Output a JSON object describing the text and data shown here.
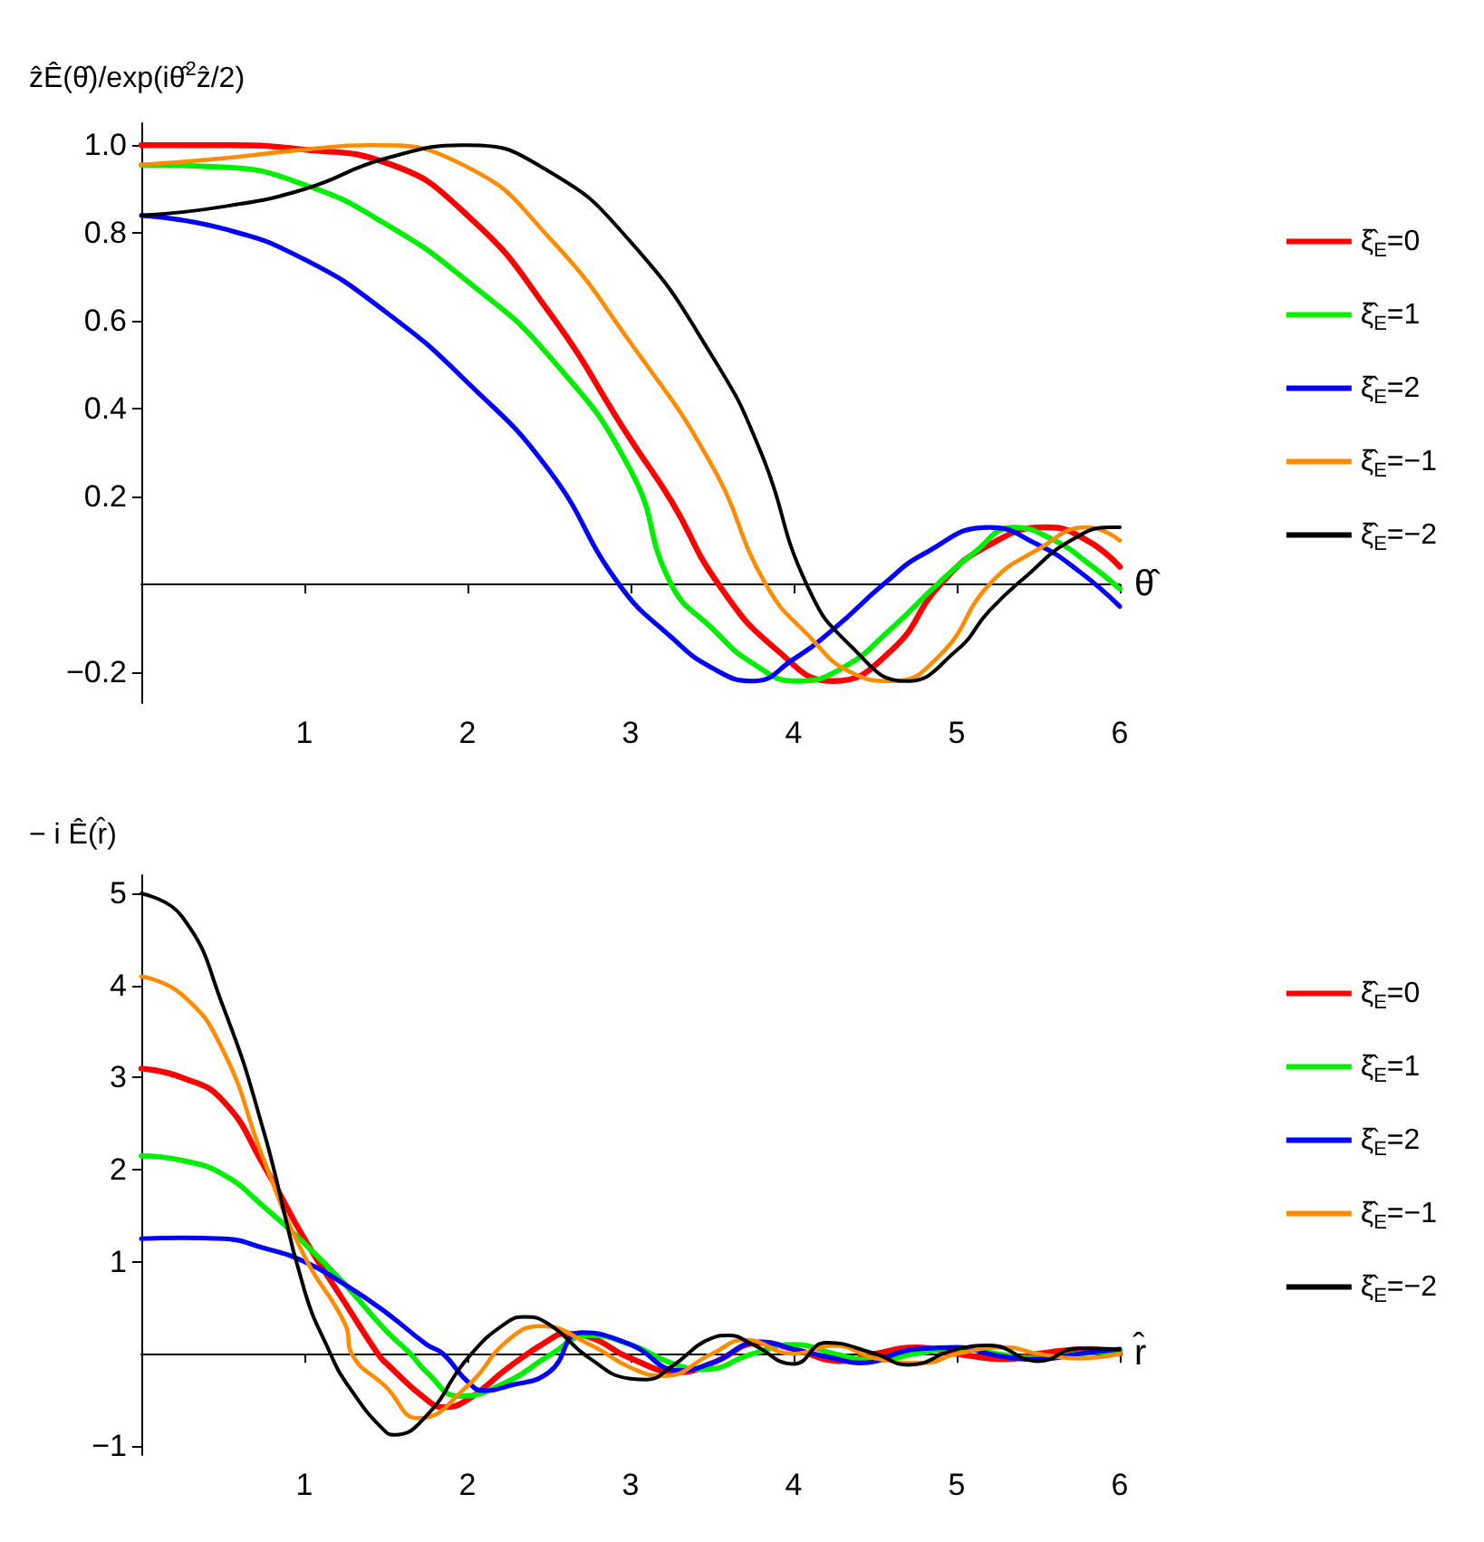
{
  "chart_data": [
    {
      "type": "line",
      "ylabel": "ẑÊ(θ̂)/exp(iθ̂$^{2}$ẑ/2)",
      "xlabel": "θ̂",
      "xlim": [
        0,
        6
      ],
      "xticks": [
        1,
        2,
        3,
        4,
        5,
        6
      ],
      "ylim": [
        -0.27,
        1.05
      ],
      "yticks": [
        {
          "value": -0.2,
          "label": "−0.2"
        },
        0.2,
        0.4,
        0.6,
        0.8,
        {
          "value": 1,
          "label": "1.0"
        }
      ],
      "legend": "right",
      "series": [
        {
          "name": "ξ̂$_{E}$=0",
          "color": "#ff0000",
          "x": [
            0,
            0.5,
            1,
            1.5,
            2,
            2.5,
            3,
            3.25,
            3.54,
            3.9,
            4.24,
            4.6,
            4.9,
            5.2,
            5.55,
            5.8,
            6
          ],
          "values": [
            1,
            1,
            0.99,
            0.96,
            0.84,
            0.62,
            0.33,
            0.19,
            0,
            -0.15,
            -0.22,
            -0.15,
            0,
            0.09,
            0.13,
            0.1,
            0.04
          ]
        },
        {
          "name": "ξ̂$_{E}$=1",
          "color": "#00ee00",
          "x": [
            0,
            0.5,
            1,
            1.5,
            2,
            2.5,
            3,
            3.25,
            3.5,
            3.75,
            4.02,
            4.3,
            4.6,
            4.88,
            5.1,
            5.35,
            5.6,
            5.8,
            6
          ],
          "values": [
            0.955,
            0.95,
            0.91,
            0.82,
            0.69,
            0.52,
            0.26,
            0,
            -0.1,
            -0.18,
            -0.22,
            -0.19,
            -0.1,
            0,
            0.07,
            0.13,
            0.1,
            0.05,
            -0.01
          ]
        },
        {
          "name": "ξ̂$_{E}$=2",
          "color": "#0000ff",
          "x": [
            0,
            0.5,
            1,
            1.5,
            2,
            2.5,
            2.93,
            3.25,
            3.5,
            3.75,
            4,
            4.25,
            4.55,
            4.8,
            5.2,
            5.5,
            5.75,
            6
          ],
          "values": [
            0.84,
            0.81,
            0.74,
            0.62,
            0.46,
            0.26,
            0,
            -0.12,
            -0.19,
            -0.22,
            -0.17,
            -0.1,
            0,
            0.07,
            0.13,
            0.09,
            0.03,
            -0.05
          ]
        },
        {
          "name": "ξ̂$_{E}$=−1",
          "color": "#ff8c00",
          "x": [
            0,
            0.5,
            1,
            1.4,
            2,
            2.5,
            3,
            3.5,
            3.83,
            4.1,
            4.35,
            4.6,
            4.9,
            5.2,
            5.5,
            5.8,
            6
          ],
          "values": [
            0.955,
            0.97,
            0.99,
            1,
            0.95,
            0.79,
            0.55,
            0.27,
            0,
            -0.12,
            -0.2,
            -0.22,
            -0.16,
            0,
            0.08,
            0.13,
            0.1
          ]
        },
        {
          "name": "ξ̂$_{E}$=−2",
          "color": "#000000",
          "x": [
            0,
            0.5,
            1,
            1.5,
            2,
            2.5,
            3,
            3.5,
            3.8,
            4.08,
            4.35,
            4.69,
            5,
            5.2,
            5.43,
            5.7,
            5.95,
            6
          ],
          "values": [
            0.84,
            0.86,
            0.9,
            0.97,
            1,
            0.94,
            0.78,
            0.52,
            0.3,
            0,
            -0.14,
            -0.22,
            -0.15,
            -0.06,
            0.02,
            0.1,
            0.13,
            0.13
          ]
        }
      ]
    },
    {
      "type": "line",
      "ylabel": "− i Ê(r̂)",
      "xlabel": "r̂",
      "xlim": [
        0,
        6
      ],
      "xticks": [
        1,
        2,
        3,
        4,
        5,
        6
      ],
      "ylim": [
        -1.1,
        5.2
      ],
      "yticks": [
        {
          "value": -1,
          "label": "−1"
        },
        1,
        2,
        3,
        4,
        5
      ],
      "legend": "right",
      "series": [
        {
          "name": "ξ̂$_{E}$=0",
          "color": "#ff0000",
          "x": [
            0,
            0.25,
            0.5,
            0.75,
            1,
            1.25,
            1.45,
            1.5,
            1.75,
            1.85,
            2,
            2.25,
            2.5,
            2.6,
            2.75,
            3,
            3.3,
            3.5,
            3.8,
            4,
            4.3,
            4.5,
            4.75,
            5,
            5.3,
            5.5,
            5.8,
            6
          ],
          "values": [
            3.1,
            3,
            2.75,
            2.05,
            1.25,
            0.55,
            0,
            -0.1,
            -0.5,
            -0.58,
            -0.5,
            -0.15,
            0.15,
            0.22,
            0.18,
            -0.05,
            -0.2,
            -0.1,
            0.12,
            0.05,
            -0.08,
            0,
            0.07,
            0,
            -0.06,
            0,
            0.05,
            0
          ]
        },
        {
          "name": "ξ̂$_{E}$=1",
          "color": "#00ee00",
          "x": [
            0,
            0.25,
            0.5,
            0.75,
            1,
            1.25,
            1.5,
            1.65,
            1.75,
            1.95,
            2.25,
            2.5,
            2.75,
            3,
            3.25,
            3.45,
            3.75,
            4,
            4.25,
            4.5,
            4.75,
            5,
            5.25,
            5.5,
            5.75,
            6
          ],
          "values": [
            2.15,
            2.1,
            1.95,
            1.6,
            1.2,
            0.75,
            0.25,
            0,
            -0.2,
            -0.46,
            -0.3,
            -0.02,
            0.2,
            0.1,
            -0.1,
            -0.17,
            0,
            0.1,
            0,
            -0.07,
            0,
            0.06,
            0,
            -0.05,
            0,
            0.03
          ]
        },
        {
          "name": "ξ̂$_{E}$=2",
          "color": "#0000ff",
          "x": [
            0,
            0.25,
            0.5,
            0.75,
            1,
            1.25,
            1.5,
            1.75,
            1.85,
            2,
            2.1,
            2.25,
            2.5,
            2.7,
            3,
            3.3,
            3.5,
            3.8,
            4,
            4.25,
            4.4,
            4.75,
            5,
            5.25,
            5.5,
            5.75,
            6
          ],
          "values": [
            1.25,
            1.26,
            1.25,
            1.15,
            1,
            0.75,
            0.45,
            0.1,
            0,
            -0.3,
            -0.4,
            -0.35,
            -0.2,
            0.23,
            0.1,
            -0.18,
            -0.1,
            0.13,
            0.05,
            -0.05,
            -0.1,
            0.05,
            0.07,
            -0.02,
            -0.06,
            0,
            0.05
          ]
        },
        {
          "name": "ξ̂$_{E}$=−1",
          "color": "#ff8c00",
          "x": [
            0,
            0.25,
            0.5,
            0.75,
            1,
            1.25,
            1.29,
            1.5,
            1.7,
            2,
            2.25,
            2.45,
            2.75,
            3,
            3.2,
            3.5,
            3.7,
            4,
            4.25,
            4.5,
            4.8,
            5,
            5.3,
            5.5,
            5.75,
            6
          ],
          "values": [
            4.1,
            3.9,
            3.3,
            2.11,
            1.06,
            0.32,
            0,
            -0.36,
            -0.7,
            -0.35,
            0.15,
            0.3,
            0.1,
            -0.15,
            -0.24,
            0,
            0.15,
            0,
            0.09,
            -0.05,
            -0.1,
            0,
            0.07,
            0,
            -0.05,
            0
          ]
        },
        {
          "name": "ξ̂$_{E}$=−2",
          "color": "#000000",
          "x": [
            0,
            0.25,
            0.5,
            0.75,
            1,
            1.16,
            1.25,
            1.5,
            1.55,
            1.75,
            2,
            2.25,
            2.35,
            2.5,
            2.75,
            3,
            3.1,
            3.25,
            3.5,
            3.6,
            3.75,
            4,
            4.2,
            4.5,
            4.7,
            5,
            5.2,
            5.5,
            5.75,
            6
          ],
          "values": [
            5,
            4.75,
            3.78,
            2.42,
            0.69,
            0,
            -0.3,
            -0.85,
            -0.88,
            -0.67,
            -0.05,
            0.35,
            0.4,
            0.32,
            -0.05,
            -0.27,
            -0.28,
            -0.14,
            0.17,
            0.2,
            0.1,
            -0.11,
            0.12,
            0,
            -0.12,
            0.05,
            0.09,
            -0.08,
            0.06,
            0.05
          ]
        }
      ]
    }
  ]
}
